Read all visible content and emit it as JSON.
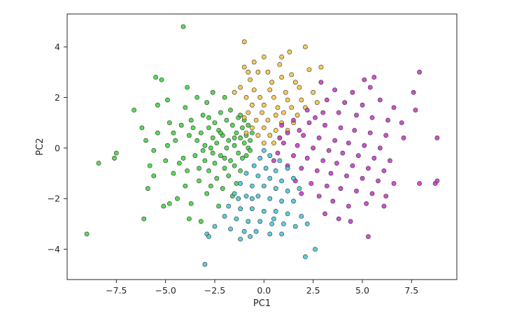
{
  "chart_data": {
    "type": "scatter",
    "title": "",
    "xlabel": "PC1",
    "ylabel": "PC2",
    "xlim": [
      -10.0,
      9.8
    ],
    "ylim": [
      -5.2,
      5.3
    ],
    "x_ticks": [
      -7.5,
      -5.0,
      -2.5,
      0.0,
      2.5,
      5.0,
      7.5
    ],
    "x_tick_labels": [
      "−7.5",
      "−5.0",
      "−2.5",
      "0.0",
      "2.5",
      "5.0",
      "7.5"
    ],
    "y_ticks": [
      -4,
      -2,
      0,
      2,
      4
    ],
    "y_tick_labels": [
      "−4",
      "−2",
      "0",
      "2",
      "4"
    ],
    "grid": false,
    "legend": "none",
    "marker_edge_color": "#333333",
    "series": [
      {
        "color": "#3dd13d",
        "points": [
          [
            -4.1,
            4.8
          ],
          [
            -9.0,
            -3.4
          ],
          [
            -8.4,
            -0.6
          ],
          [
            -7.6,
            -0.4
          ],
          [
            -7.5,
            -0.2
          ],
          [
            -6.6,
            1.5
          ],
          [
            -6.2,
            0.8
          ],
          [
            -6.1,
            -2.8
          ],
          [
            -6.0,
            0.3
          ],
          [
            -5.9,
            -1.6
          ],
          [
            -5.8,
            -0.7
          ],
          [
            -5.6,
            -1.1
          ],
          [
            -5.6,
            -0.1
          ],
          [
            -5.5,
            2.8
          ],
          [
            -5.4,
            1.7
          ],
          [
            -5.4,
            0.6
          ],
          [
            -5.2,
            2.7
          ],
          [
            -5.1,
            -2.3
          ],
          [
            -4.9,
            1.9
          ],
          [
            -4.9,
            0.1
          ],
          [
            -4.8,
            -2.2
          ],
          [
            -4.8,
            1.0
          ],
          [
            -4.6,
            -1.0
          ],
          [
            -4.5,
            0.3
          ],
          [
            -4.4,
            -2.0
          ],
          [
            -4.3,
            -0.6
          ],
          [
            -4.2,
            0.9
          ],
          [
            -4.0,
            1.6
          ],
          [
            -4.0,
            -1.5
          ],
          [
            -3.9,
            2.4
          ],
          [
            -3.9,
            -0.9
          ],
          [
            -3.8,
            -2.8
          ],
          [
            -3.8,
            0.5
          ],
          [
            -3.7,
            1.1
          ],
          [
            -3.7,
            -2.2
          ],
          [
            -3.5,
            -0.3
          ],
          [
            -3.4,
            0.3
          ],
          [
            -3.4,
            2.0
          ],
          [
            -3.3,
            -1.3
          ],
          [
            -3.3,
            -0.8
          ],
          [
            -3.2,
            0.6
          ],
          [
            -3.2,
            -2.9
          ],
          [
            -3.1,
            1.3
          ],
          [
            -3.0,
            -0.5
          ],
          [
            -3.0,
            0.1
          ],
          [
            -2.9,
            -1.8
          ],
          [
            -2.9,
            1.8
          ],
          [
            -2.8,
            0.8
          ],
          [
            -2.8,
            -0.9
          ],
          [
            -2.7,
            0.0
          ],
          [
            -2.7,
            -1.5
          ],
          [
            -2.6,
            2.2
          ],
          [
            -2.6,
            0.4
          ],
          [
            -2.5,
            -0.6
          ],
          [
            -2.5,
            1.0
          ],
          [
            -2.4,
            -1.2
          ],
          [
            -2.4,
            0.2
          ],
          [
            -2.3,
            -2.3
          ],
          [
            -2.3,
            0.7
          ],
          [
            -2.2,
            1.4
          ],
          [
            -2.2,
            -0.3
          ],
          [
            -2.1,
            -1.6
          ],
          [
            -2.1,
            0.5
          ],
          [
            -2.0,
            2.0
          ],
          [
            -2.0,
            -0.8
          ],
          [
            -1.9,
            0.0
          ],
          [
            -1.9,
            1.1
          ],
          [
            -1.8,
            -1.1
          ],
          [
            -1.8,
            0.3
          ],
          [
            -1.7,
            -0.5
          ],
          [
            -1.7,
            1.5
          ],
          [
            -1.6,
            -1.9
          ],
          [
            -1.6,
            0.9
          ],
          [
            -1.5,
            0.1
          ],
          [
            -1.5,
            -0.7
          ],
          [
            -1.4,
            0.6
          ],
          [
            -1.4,
            -1.4
          ],
          [
            -1.3,
            1.2
          ],
          [
            -1.3,
            -0.2
          ],
          [
            -1.2,
            0.4
          ],
          [
            -1.2,
            -0.9
          ],
          [
            -1.1,
            0.8
          ],
          [
            -1.1,
            -0.4
          ],
          [
            -1.0,
            0.2
          ],
          [
            -1.0,
            1.1
          ],
          [
            -0.9,
            -0.3
          ],
          [
            -0.9,
            0.5
          ],
          [
            -0.8,
            0.0
          ],
          [
            -0.8,
            0.9
          ],
          [
            -0.7,
            -0.1
          ],
          [
            -0.7,
            0.3
          ],
          [
            -0.6,
            0.6
          ],
          [
            -2.0,
            -0.4
          ],
          [
            -2.6,
            -0.2
          ],
          [
            -3.1,
            -0.1
          ],
          [
            -2.2,
            0.6
          ],
          [
            -1.5,
            0.4
          ],
          [
            -3.6,
            0.8
          ],
          [
            -2.8,
            1.2
          ],
          [
            -1.2,
            1.3
          ],
          [
            -4.6,
            0.6
          ],
          [
            -4.1,
            -0.4
          ],
          [
            -5.0,
            -0.5
          ]
        ]
      },
      {
        "color": "#f5c242",
        "points": [
          [
            -1.0,
            4.2
          ],
          [
            2.1,
            4.0
          ],
          [
            1.3,
            3.8
          ],
          [
            -0.5,
            3.4
          ],
          [
            0.0,
            3.6
          ],
          [
            0.8,
            3.3
          ],
          [
            -1.0,
            3.2
          ],
          [
            -0.3,
            3.0
          ],
          [
            0.2,
            3.0
          ],
          [
            0.9,
            2.8
          ],
          [
            1.6,
            2.6
          ],
          [
            -0.7,
            2.7
          ],
          [
            2.3,
            3.1
          ],
          [
            2.9,
            3.2
          ],
          [
            -1.2,
            2.4
          ],
          [
            -0.5,
            2.3
          ],
          [
            0.3,
            2.3
          ],
          [
            1.1,
            2.2
          ],
          [
            1.8,
            2.4
          ],
          [
            2.5,
            2.2
          ],
          [
            -0.9,
            2.0
          ],
          [
            -0.2,
            2.0
          ],
          [
            0.5,
            2.0
          ],
          [
            1.2,
            1.9
          ],
          [
            1.9,
            1.9
          ],
          [
            2.7,
            1.8
          ],
          [
            -0.6,
            1.7
          ],
          [
            0.0,
            1.7
          ],
          [
            0.7,
            1.6
          ],
          [
            1.4,
            1.6
          ],
          [
            2.1,
            1.6
          ],
          [
            -0.8,
            1.4
          ],
          [
            -0.1,
            1.4
          ],
          [
            0.6,
            1.3
          ],
          [
            1.0,
            1.4
          ],
          [
            1.7,
            1.3
          ],
          [
            -1.0,
            1.2
          ],
          [
            -0.4,
            1.1
          ],
          [
            0.2,
            1.1
          ],
          [
            0.9,
            1.0
          ],
          [
            1.5,
            1.0
          ],
          [
            -0.6,
            0.8
          ],
          [
            0.0,
            0.8
          ],
          [
            0.6,
            0.7
          ],
          [
            1.2,
            0.7
          ],
          [
            -0.3,
            0.5
          ],
          [
            0.3,
            0.5
          ],
          [
            0.8,
            0.4
          ],
          [
            0.0,
            0.2
          ],
          [
            0.5,
            0.2
          ],
          [
            -0.9,
            0.6
          ],
          [
            0.4,
            2.6
          ],
          [
            -1.5,
            2.2
          ],
          [
            1.4,
            2.9
          ],
          [
            0.9,
            3.6
          ],
          [
            -0.8,
            3.0
          ]
        ]
      },
      {
        "color": "#c832c8",
        "points": [
          [
            7.9,
            3.0
          ],
          [
            7.6,
            2.2
          ],
          [
            5.6,
            2.8
          ],
          [
            5.1,
            2.7
          ],
          [
            2.9,
            2.6
          ],
          [
            3.6,
            2.3
          ],
          [
            4.5,
            2.2
          ],
          [
            5.4,
            2.4
          ],
          [
            6.6,
            1.6
          ],
          [
            7.7,
            1.5
          ],
          [
            3.2,
            1.9
          ],
          [
            4.1,
            1.8
          ],
          [
            5.0,
            1.7
          ],
          [
            5.9,
            1.9
          ],
          [
            2.2,
            1.5
          ],
          [
            3.0,
            1.4
          ],
          [
            3.8,
            1.4
          ],
          [
            4.7,
            1.3
          ],
          [
            5.5,
            1.2
          ],
          [
            6.3,
            1.1
          ],
          [
            7.0,
            1.0
          ],
          [
            1.5,
            1.1
          ],
          [
            2.3,
            1.0
          ],
          [
            3.1,
            0.9
          ],
          [
            3.9,
            0.8
          ],
          [
            4.6,
            0.7
          ],
          [
            5.4,
            0.6
          ],
          [
            6.2,
            0.5
          ],
          [
            7.1,
            0.4
          ],
          [
            8.8,
            0.4
          ],
          [
            1.2,
            0.6
          ],
          [
            2.0,
            0.5
          ],
          [
            2.8,
            0.4
          ],
          [
            3.6,
            0.3
          ],
          [
            4.3,
            0.2
          ],
          [
            5.1,
            0.1
          ],
          [
            5.9,
            0.0
          ],
          [
            1.0,
            0.2
          ],
          [
            1.7,
            0.1
          ],
          [
            2.5,
            0.0
          ],
          [
            3.3,
            -0.1
          ],
          [
            4.0,
            -0.2
          ],
          [
            4.8,
            -0.3
          ],
          [
            5.6,
            -0.4
          ],
          [
            6.4,
            -0.5
          ],
          [
            0.7,
            -0.2
          ],
          [
            1.5,
            -0.3
          ],
          [
            2.2,
            -0.4
          ],
          [
            3.0,
            -0.5
          ],
          [
            3.7,
            -0.6
          ],
          [
            4.5,
            -0.7
          ],
          [
            5.3,
            -0.8
          ],
          [
            6.1,
            -0.9
          ],
          [
            1.2,
            -0.7
          ],
          [
            1.9,
            -0.8
          ],
          [
            2.7,
            -0.9
          ],
          [
            3.4,
            -1.0
          ],
          [
            4.2,
            -1.1
          ],
          [
            5.0,
            -1.2
          ],
          [
            5.8,
            -1.3
          ],
          [
            6.6,
            -1.4
          ],
          [
            1.6,
            -1.3
          ],
          [
            2.4,
            -1.4
          ],
          [
            3.2,
            -1.5
          ],
          [
            3.9,
            -1.6
          ],
          [
            4.7,
            -1.7
          ],
          [
            5.5,
            -1.8
          ],
          [
            6.2,
            -1.9
          ],
          [
            1.9,
            -1.8
          ],
          [
            2.8,
            -1.9
          ],
          [
            3.5,
            -2.1
          ],
          [
            4.3,
            -2.3
          ],
          [
            5.2,
            -2.2
          ],
          [
            6.1,
            -2.3
          ],
          [
            3.1,
            -2.6
          ],
          [
            3.8,
            -2.8
          ],
          [
            4.4,
            -2.9
          ],
          [
            5.3,
            -3.5
          ],
          [
            7.9,
            -1.4
          ],
          [
            8.7,
            -1.4
          ],
          [
            8.8,
            -1.3
          ],
          [
            0.9,
            0.9
          ],
          [
            1.8,
            0.7
          ],
          [
            2.6,
            1.2
          ],
          [
            0.5,
            -0.5
          ],
          [
            0.8,
            0.4
          ]
        ]
      },
      {
        "color": "#40c4d8",
        "points": [
          [
            -0.2,
            -0.4
          ],
          [
            0.3,
            -0.3
          ],
          [
            0.8,
            -0.5
          ],
          [
            -0.5,
            -0.7
          ],
          [
            0.1,
            -0.8
          ],
          [
            0.6,
            -0.9
          ],
          [
            1.2,
            -0.8
          ],
          [
            -0.9,
            -1.0
          ],
          [
            -0.3,
            -1.1
          ],
          [
            0.3,
            -1.2
          ],
          [
            0.9,
            -1.3
          ],
          [
            1.5,
            -1.2
          ],
          [
            -1.2,
            -1.4
          ],
          [
            -0.6,
            -1.5
          ],
          [
            0.0,
            -1.5
          ],
          [
            0.6,
            -1.6
          ],
          [
            1.2,
            -1.7
          ],
          [
            1.8,
            -1.6
          ],
          [
            -1.5,
            -1.8
          ],
          [
            -0.9,
            -1.9
          ],
          [
            -0.3,
            -1.9
          ],
          [
            0.3,
            -2.0
          ],
          [
            0.9,
            -2.1
          ],
          [
            1.5,
            -2.1
          ],
          [
            -1.8,
            -2.3
          ],
          [
            -1.2,
            -2.4
          ],
          [
            -0.6,
            -2.4
          ],
          [
            0.0,
            -2.5
          ],
          [
            0.6,
            -2.5
          ],
          [
            1.2,
            -2.6
          ],
          [
            1.9,
            -2.7
          ],
          [
            -2.0,
            -2.7
          ],
          [
            -1.4,
            -2.8
          ],
          [
            -0.8,
            -2.9
          ],
          [
            -0.2,
            -2.9
          ],
          [
            0.4,
            -3.0
          ],
          [
            1.0,
            -3.0
          ],
          [
            1.6,
            -3.1
          ],
          [
            2.2,
            -3.0
          ],
          [
            -2.5,
            -3.1
          ],
          [
            -1.7,
            -3.2
          ],
          [
            -1.0,
            -3.3
          ],
          [
            -0.4,
            -3.3
          ],
          [
            0.3,
            -3.4
          ],
          [
            0.9,
            -3.4
          ],
          [
            -2.9,
            -3.4
          ],
          [
            -2.8,
            -3.5
          ],
          [
            -1.2,
            -3.6
          ],
          [
            -0.7,
            -3.5
          ],
          [
            -3.0,
            -4.6
          ],
          [
            2.1,
            -4.3
          ],
          [
            2.6,
            -4.0
          ],
          [
            0.0,
            -0.1
          ],
          [
            -0.6,
            -2.0
          ],
          [
            0.5,
            -2.8
          ],
          [
            -1.3,
            -2.0
          ]
        ]
      }
    ]
  }
}
